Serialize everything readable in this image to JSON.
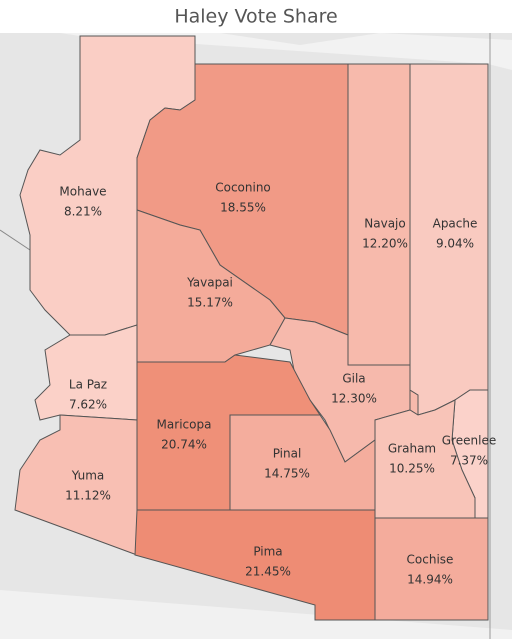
{
  "chart_data": {
    "type": "map",
    "title": "Haley Vote Share",
    "categories": [
      "Mohave",
      "Coconino",
      "Navajo",
      "Apache",
      "Yavapai",
      "La Paz",
      "Gila",
      "Maricopa",
      "Greenlee",
      "Graham",
      "Pinal",
      "Yuma",
      "Pima",
      "Cochise"
    ],
    "values": [
      8.21,
      18.55,
      12.2,
      9.04,
      15.17,
      7.62,
      12.3,
      20.74,
      7.37,
      10.25,
      14.75,
      11.12,
      21.45,
      14.94
    ],
    "value_labels": [
      "8.21%",
      "18.55%",
      "12.20%",
      "9.04%",
      "15.17%",
      "7.62%",
      "12.30%",
      "20.74%",
      "7.37%",
      "10.25%",
      "14.75%",
      "11.12%",
      "21.45%",
      "14.94%"
    ],
    "color_range": [
      "#fbd2ca",
      "#ee8c74"
    ]
  }
}
